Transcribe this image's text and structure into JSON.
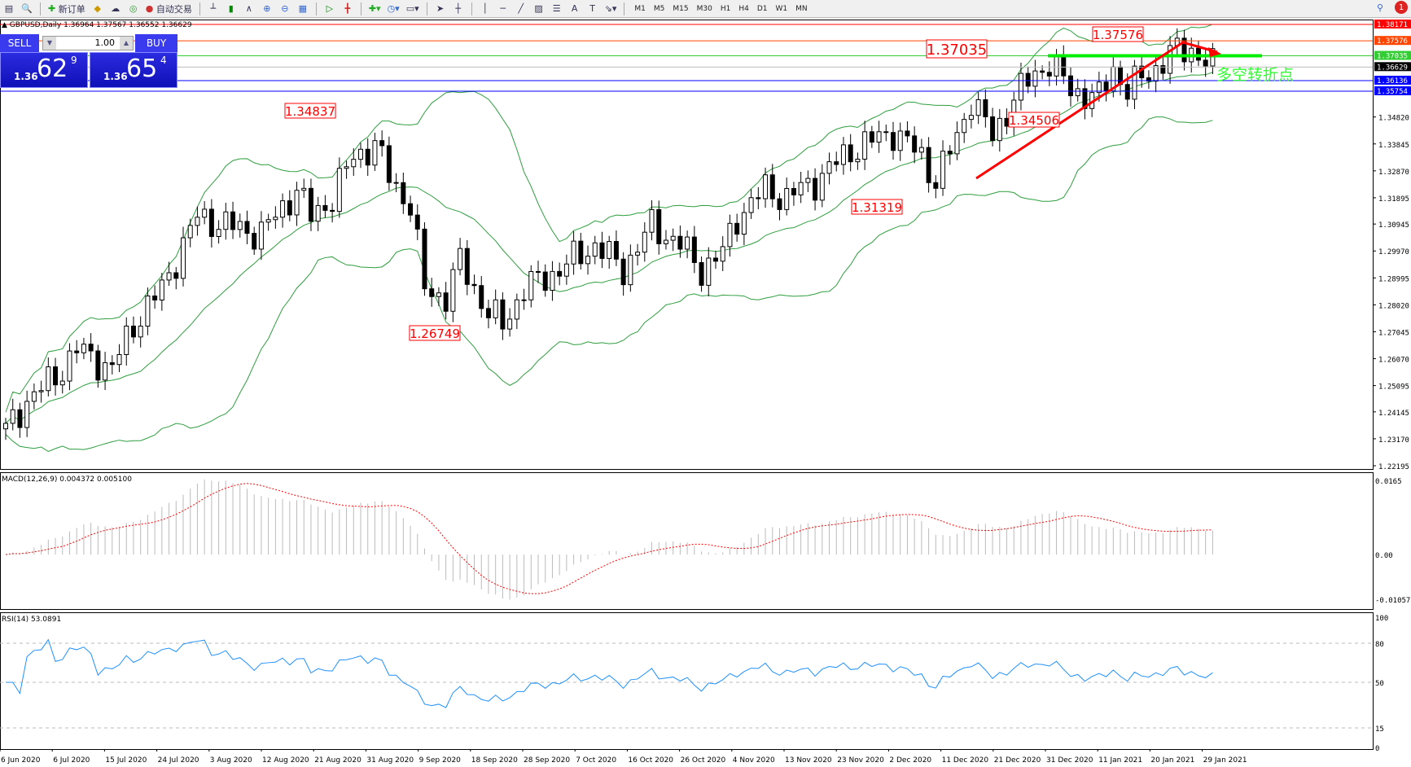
{
  "toolbar": {
    "new_order": "新订单",
    "auto_trading": "自动交易",
    "timeframes": [
      "M1",
      "M5",
      "M15",
      "M30",
      "H1",
      "H4",
      "D1",
      "W1",
      "MN"
    ],
    "notifications": "1"
  },
  "symbol_info": "GBPUSD,Daily  1.36964 1.37567 1.36552 1.36629",
  "trade_panel": {
    "sell": "SELL",
    "buy": "BUY",
    "lot": "1.00",
    "sell_prefix": "1.36",
    "sell_big": "62",
    "sell_tick": "9",
    "buy_prefix": "1.36",
    "buy_big": "65",
    "buy_tick": "4"
  },
  "price_axis": [
    "1.34820",
    "1.33845",
    "1.32870",
    "1.31895",
    "1.30945",
    "1.29970",
    "1.28995",
    "1.28020",
    "1.27045",
    "1.26070",
    "1.25095",
    "1.24145",
    "1.23170",
    "1.22195"
  ],
  "levels": [
    {
      "price": "1.38171",
      "color": "#ff0000"
    },
    {
      "price": "1.37576",
      "color": "#ff4500"
    },
    {
      "price": "1.37035",
      "color": "#32cd32"
    },
    {
      "price": "1.36629",
      "color": "#000000"
    },
    {
      "price": "1.36136",
      "color": "#0000ff"
    },
    {
      "price": "1.35754",
      "color": "#0000ff"
    }
  ],
  "annotations": [
    "1.34837",
    "1.26749",
    "1.31319",
    "1.37035",
    "1.37576",
    "1.34506"
  ],
  "turning_point_label": "多空转折点",
  "close_path": [
    [
      0,
      1.2343
    ],
    [
      3,
      1.2457
    ],
    [
      7,
      1.254
    ],
    [
      10,
      1.264
    ],
    [
      15,
      1.257
    ],
    [
      18,
      1.273
    ],
    [
      22,
      1.286
    ],
    [
      25,
      1.302
    ],
    [
      27,
      1.312
    ],
    [
      31,
      1.309
    ],
    [
      36,
      1.306
    ],
    [
      41,
      1.322
    ],
    [
      43,
      1.312
    ],
    [
      46,
      1.319
    ],
    [
      49,
      1.334
    ],
    [
      52,
      1.338
    ],
    [
      54,
      1.327
    ],
    [
      57,
      1.316
    ],
    [
      59,
      1.286
    ],
    [
      62,
      1.283
    ],
    [
      64,
      1.296
    ],
    [
      68,
      1.277
    ],
    [
      70,
      1.273
    ],
    [
      73,
      1.286
    ],
    [
      78,
      1.293
    ],
    [
      83,
      1.302
    ],
    [
      87,
      1.293
    ],
    [
      91,
      1.309
    ],
    [
      95,
      1.302
    ],
    [
      98,
      1.293
    ],
    [
      101,
      1.299
    ],
    [
      103,
      1.312
    ],
    [
      107,
      1.322
    ],
    [
      110,
      1.319
    ],
    [
      114,
      1.325
    ],
    [
      119,
      1.336
    ],
    [
      125,
      1.343
    ],
    [
      129,
      1.334
    ],
    [
      131,
      1.325
    ],
    [
      134,
      1.341
    ],
    [
      136,
      1.355
    ],
    [
      139,
      1.341
    ],
    [
      142,
      1.355
    ],
    [
      145,
      1.364
    ],
    [
      147,
      1.368
    ],
    [
      150,
      1.358
    ],
    [
      154,
      1.355
    ],
    [
      156,
      1.366
    ],
    [
      158,
      1.358
    ],
    [
      162,
      1.366
    ],
    [
      164,
      1.371
    ],
    [
      167,
      1.373
    ],
    [
      170,
      1.366
    ]
  ],
  "price_range": [
    1.22195,
    1.38171
  ],
  "macd": {
    "label": "MACD(12,26,9) 0.004372 0.005100",
    "axis": [
      "0.0165",
      "0.00",
      "-0.010571"
    ],
    "range": [
      -0.010571,
      0.0165
    ]
  },
  "rsi": {
    "label": "RSI(14) 53.0891",
    "axis": [
      "100",
      "80",
      "50",
      "15",
      "0"
    ]
  },
  "dates": [
    "6 Jun 2020",
    "6 Jul 2020",
    "15 Jul 2020",
    "24 Jul 2020",
    "3 Aug 2020",
    "12 Aug 2020",
    "21 Aug 2020",
    "31 Aug 2020",
    "9 Sep 2020",
    "18 Sep 2020",
    "28 Sep 2020",
    "7 Oct 2020",
    "16 Oct 2020",
    "26 Oct 2020",
    "4 Nov 2020",
    "13 Nov 2020",
    "23 Nov 2020",
    "2 Dec 2020",
    "11 Dec 2020",
    "21 Dec 2020",
    "31 Dec 2020",
    "11 Jan 2021",
    "20 Jan 2021",
    "29 Jan 2021"
  ],
  "colors": {
    "bands": "#2e9e3e",
    "arrow": "#ff0000",
    "rsi": "#1e90ff",
    "macd_signal": "#ff0000",
    "histogram": "#bbbbbb"
  }
}
